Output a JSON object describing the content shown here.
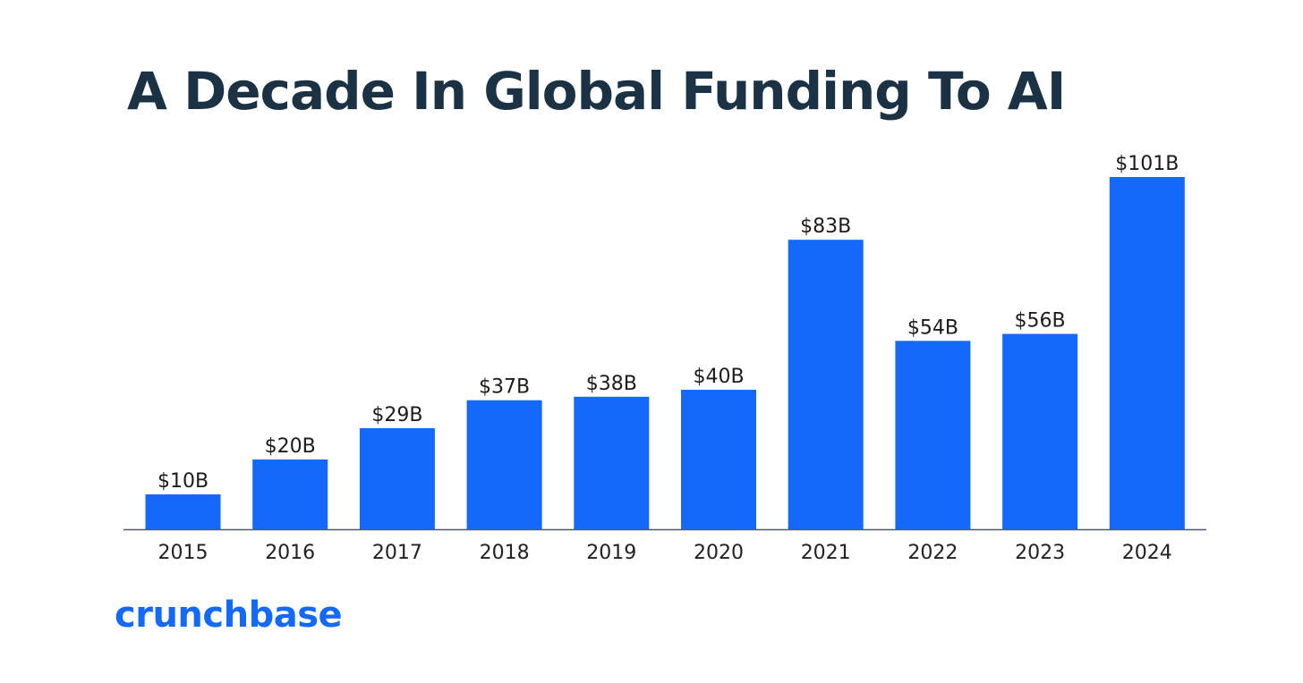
{
  "colors": {
    "bar": "#1469fb",
    "title": "#1b3244",
    "axis": "#4a5a6a",
    "logo": "#1469fb"
  },
  "logo": {
    "text": "crunchbase"
  },
  "chart_data": {
    "type": "bar",
    "title": "A Decade In Global Funding To AI",
    "xlabel": "",
    "ylabel": "",
    "unit": "USD billions",
    "categories": [
      "2015",
      "2016",
      "2017",
      "2018",
      "2019",
      "2020",
      "2021",
      "2022",
      "2023",
      "2024"
    ],
    "values": [
      10,
      20,
      29,
      37,
      38,
      40,
      83,
      54,
      56,
      101
    ],
    "value_labels": [
      "$10B",
      "$20B",
      "$29B",
      "$37B",
      "$38B",
      "$40B",
      "$83B",
      "$54B",
      "$56B",
      "$101B"
    ],
    "ylim": [
      0,
      101
    ],
    "grid": false,
    "legend": "none"
  }
}
